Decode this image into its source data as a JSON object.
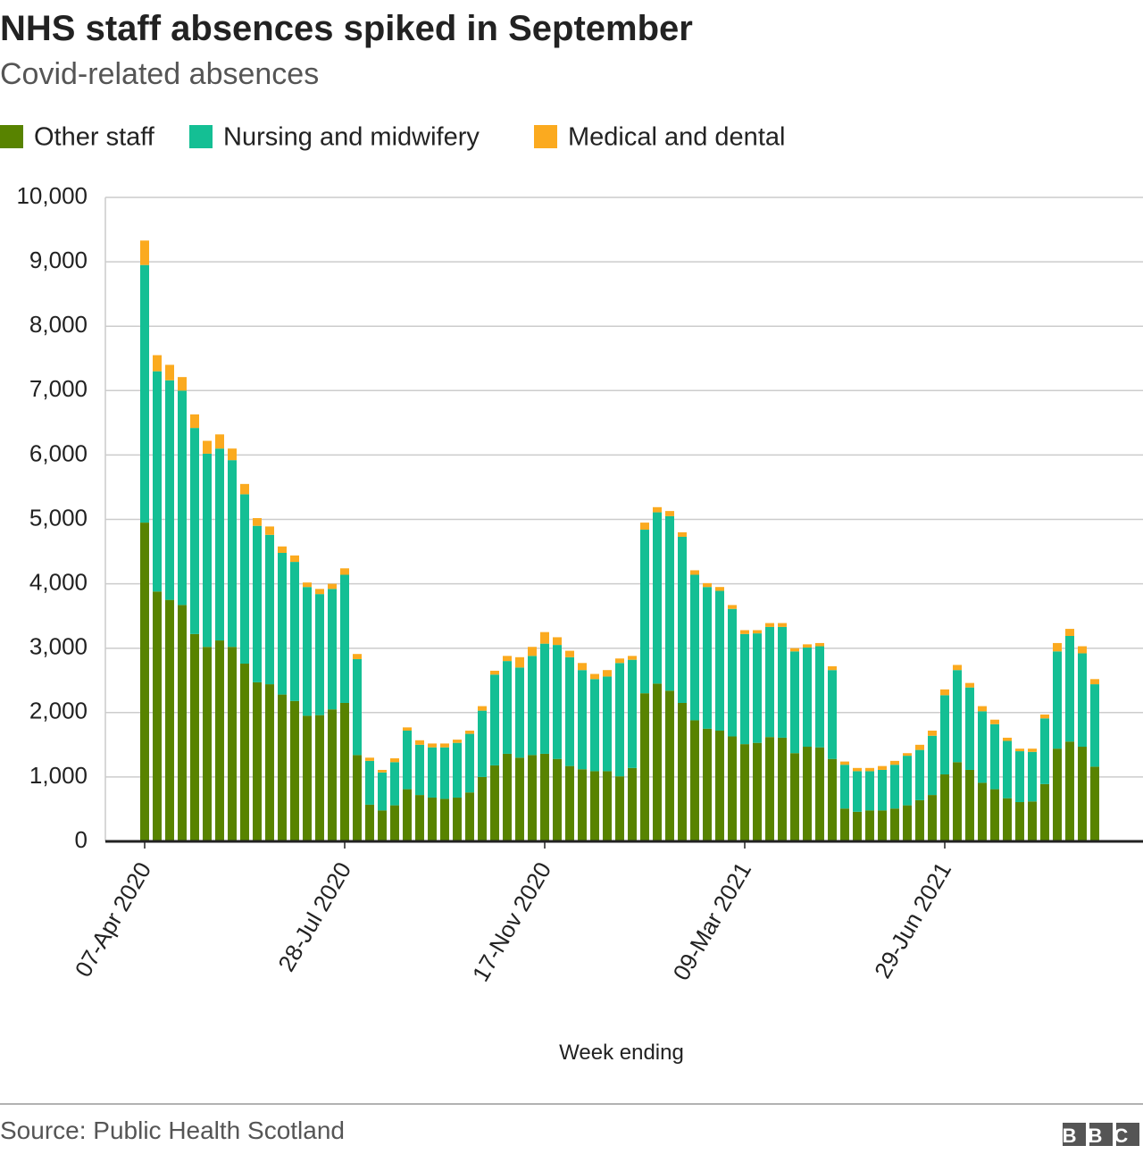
{
  "chart_data": {
    "type": "stacked_bar",
    "title": "NHS staff absences spiked in September",
    "subtitle": "Covid-related absences",
    "x_label": "Week ending",
    "source": "Source: Public Health Scotland",
    "logo": "BBC",
    "categories": [
      "07-Apr 2020",
      null,
      null,
      null,
      null,
      null,
      null,
      null,
      null,
      null,
      null,
      null,
      null,
      null,
      null,
      null,
      "28-Jul 2020",
      null,
      null,
      null,
      null,
      null,
      null,
      null,
      null,
      null,
      null,
      null,
      null,
      null,
      null,
      null,
      "17-Nov 2020",
      null,
      null,
      null,
      null,
      null,
      null,
      null,
      null,
      null,
      null,
      null,
      null,
      null,
      null,
      null,
      "09-Mar 2021",
      null,
      null,
      null,
      null,
      null,
      null,
      null,
      null,
      null,
      null,
      null,
      null,
      null,
      null,
      null,
      "29-Jun 2021",
      null,
      null,
      null,
      null,
      null,
      null,
      null,
      null,
      null,
      null,
      null,
      null
    ],
    "series": [
      {
        "name": "Other staff",
        "color": "#588300",
        "values": [
          4950,
          3880,
          3750,
          3670,
          3220,
          3020,
          3120,
          3020,
          2760,
          2470,
          2440,
          2280,
          2180,
          1950,
          1960,
          2050,
          2150,
          1340,
          570,
          480,
          560,
          810,
          720,
          680,
          660,
          680,
          760,
          1000,
          1180,
          1360,
          1300,
          1340,
          1360,
          1280,
          1170,
          1120,
          1090,
          1090,
          1010,
          1140,
          2300,
          2450,
          2340,
          2150,
          1880,
          1750,
          1720,
          1630,
          1510,
          1530,
          1620,
          1610,
          1370,
          1470,
          1460,
          1280,
          510,
          460,
          480,
          480,
          510,
          560,
          640,
          720,
          1040,
          1230,
          1110,
          910,
          810,
          670,
          610,
          620,
          890,
          1440,
          1550,
          1470,
          1160
        ]
      },
      {
        "name": "Nursing and midwifery",
        "color": "#14bf94",
        "values": [
          4000,
          3420,
          3410,
          3330,
          3200,
          3000,
          2980,
          2900,
          2630,
          2430,
          2320,
          2200,
          2160,
          2000,
          1880,
          1870,
          1990,
          1490,
          680,
          590,
          670,
          910,
          780,
          780,
          800,
          850,
          910,
          1030,
          1410,
          1440,
          1400,
          1540,
          1710,
          1770,
          1690,
          1540,
          1430,
          1470,
          1760,
          1680,
          2540,
          2660,
          2710,
          2580,
          2260,
          2200,
          2170,
          1980,
          1710,
          1700,
          1710,
          1720,
          1580,
          1540,
          1570,
          1380,
          680,
          630,
          610,
          630,
          680,
          770,
          780,
          920,
          1230,
          1430,
          1280,
          1110,
          1010,
          890,
          790,
          770,
          1020,
          1510,
          1640,
          1450,
          1280
        ]
      },
      {
        "name": "Medical and dental",
        "color": "#fbaa1f",
        "values": [
          380,
          250,
          240,
          210,
          210,
          200,
          220,
          180,
          160,
          120,
          130,
          100,
          100,
          70,
          80,
          80,
          100,
          80,
          50,
          40,
          60,
          50,
          70,
          60,
          60,
          50,
          50,
          70,
          60,
          80,
          160,
          140,
          180,
          120,
          100,
          110,
          80,
          100,
          70,
          60,
          110,
          80,
          80,
          70,
          70,
          60,
          60,
          60,
          60,
          50,
          60,
          60,
          50,
          50,
          50,
          60,
          50,
          50,
          50,
          60,
          60,
          40,
          80,
          80,
          90,
          80,
          70,
          80,
          70,
          50,
          40,
          50,
          60,
          130,
          110,
          110,
          80
        ]
      }
    ],
    "ylim": [
      0,
      10000
    ],
    "yticks": [
      0,
      {
        "value": 1000,
        "label": "1,000"
      },
      {
        "value": 2000,
        "label": "2,000"
      },
      {
        "value": 3000,
        "label": "3,000"
      },
      {
        "value": 4000,
        "label": "4,000"
      },
      {
        "value": 5000,
        "label": "5,000"
      },
      {
        "value": 6000,
        "label": "6,000"
      },
      {
        "value": 7000,
        "label": "7,000"
      },
      {
        "value": 8000,
        "label": "8,000"
      },
      {
        "value": 9000,
        "label": "9,000"
      },
      {
        "value": 10000,
        "label": "10,000"
      }
    ],
    "grid": true
  }
}
